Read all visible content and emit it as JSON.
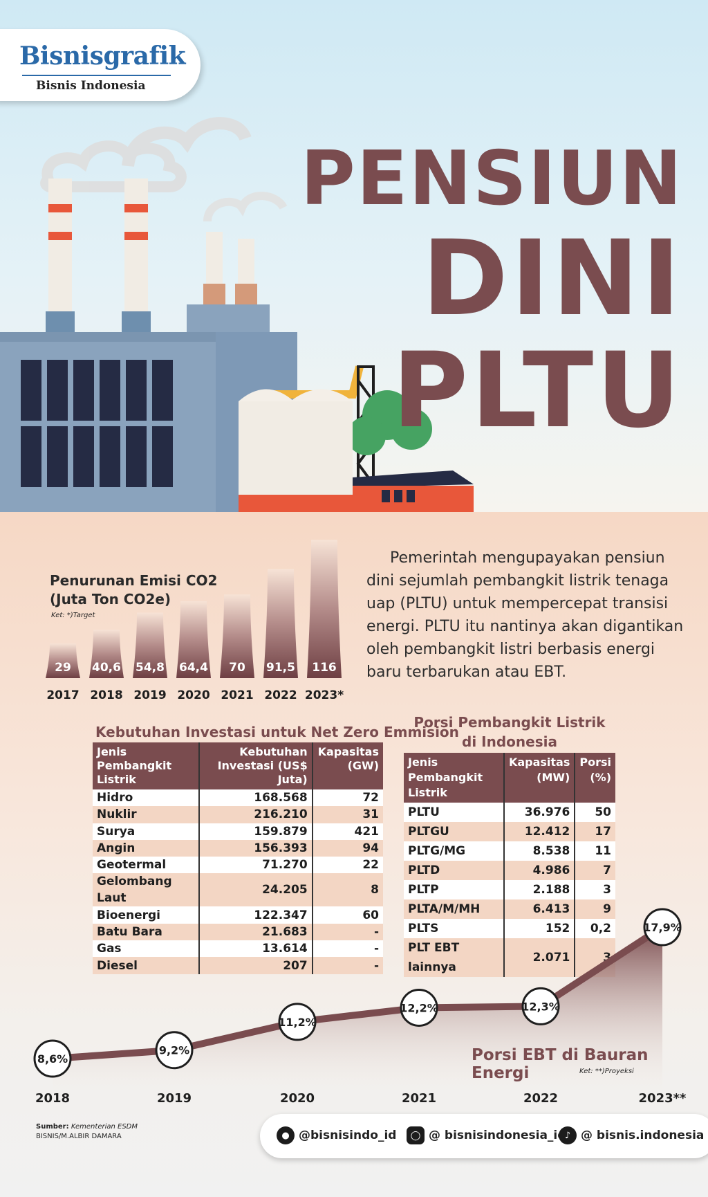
{
  "logo": {
    "main": "Bisnisgrafik",
    "sub": "Bisnis Indonesia"
  },
  "title": {
    "line1": "PENSIUN",
    "line2": "DINI",
    "line3": "PLTU"
  },
  "intro": "Pemerintah mengupayakan pensiun dini sejumlah pembangkit listrik tenaga uap (PLTU) untuk mempercepat transisi energi. PLTU itu nantinya akan digantikan oleh pembangkit listri berbasis energi baru terbarukan atau EBT.",
  "colors": {
    "brand": "#7a4c4f",
    "accent_blue": "#2a69a8",
    "row_alt": "#f3d6c4"
  },
  "emission_chart": {
    "title1": "Penurunan Emisi CO2",
    "title2": "(Juta Ton CO2e)",
    "note": "Ket: *)Target"
  },
  "investment_table": {
    "title": "Kebutuhan Investasi untuk Net Zero Emmision",
    "headers": [
      "Jenis Pembangkit Listrik",
      "Kebutuhan Investasi (US$ Juta)",
      "Kapasitas (GW)"
    ],
    "rows": [
      [
        "Hidro",
        "168.568",
        "72"
      ],
      [
        "Nuklir",
        "216.210",
        "31"
      ],
      [
        "Surya",
        "159.879",
        "421"
      ],
      [
        "Angin",
        "156.393",
        "94"
      ],
      [
        "Geotermal",
        "71.270",
        "22"
      ],
      [
        "Gelombang Laut",
        "24.205",
        "8"
      ],
      [
        "Bioenergi",
        "122.347",
        "60"
      ],
      [
        "Batu Bara",
        "21.683",
        "-"
      ],
      [
        "Gas",
        "13.614",
        "-"
      ],
      [
        "Diesel",
        "207",
        "-"
      ]
    ]
  },
  "porsi_table": {
    "title1": "Porsi Pembangkit Listrik",
    "title2": "di Indonesia",
    "headers": [
      "Jenis Pembangkit Listrik",
      "Kapasitas (MW)",
      "Porsi (%)"
    ],
    "rows": [
      [
        "PLTU",
        "36.976",
        "50"
      ],
      [
        "PLTGU",
        "12.412",
        "17"
      ],
      [
        "PLTG/MG",
        "8.538",
        "11"
      ],
      [
        "PLTD",
        "4.986",
        "7"
      ],
      [
        "PLTP",
        "2.188",
        "3"
      ],
      [
        "PLTA/M/MH",
        "6.413",
        "9"
      ],
      [
        "PLTS",
        "152",
        "0,2"
      ],
      [
        "PLT EBT lainnya",
        "2.071",
        "3"
      ]
    ]
  },
  "ebt_chart": {
    "title": "Porsi EBT di Bauran Energi",
    "note": "Ket: **)Proyeksi"
  },
  "chart_data": [
    {
      "type": "bar",
      "title": "Penurunan Emisi CO2 (Juta Ton CO2e)",
      "categories": [
        "2017",
        "2018",
        "2019",
        "2020",
        "2021",
        "2022",
        "2023*"
      ],
      "values": [
        29,
        40.6,
        54.8,
        64.4,
        70,
        91.5,
        116
      ],
      "labels": [
        "29",
        "40,6",
        "54,8",
        "64,4",
        "70",
        "91,5",
        "116"
      ]
    },
    {
      "type": "area",
      "title": "Porsi EBT di Bauran Energi",
      "categories": [
        "2018",
        "2019",
        "2020",
        "2021",
        "2022",
        "2023**"
      ],
      "values": [
        8.6,
        9.2,
        11.2,
        12.2,
        12.3,
        17.9
      ],
      "labels": [
        "8,6%",
        "9,2%",
        "11,2%",
        "12,2%",
        "12,3%",
        "17,9%"
      ]
    }
  ],
  "source": {
    "label": "Sumber:",
    "value": "Kementerian ESDM",
    "credit": "BISNIS/M.ALBIR DAMARA"
  },
  "social": [
    {
      "icon": "twitter-icon",
      "handle": "@bisnisindo_id"
    },
    {
      "icon": "instagram-icon",
      "handle": "@ bisnisindonesia_id"
    },
    {
      "icon": "tiktok-icon",
      "handle": "@ bisnis.indonesia"
    }
  ]
}
